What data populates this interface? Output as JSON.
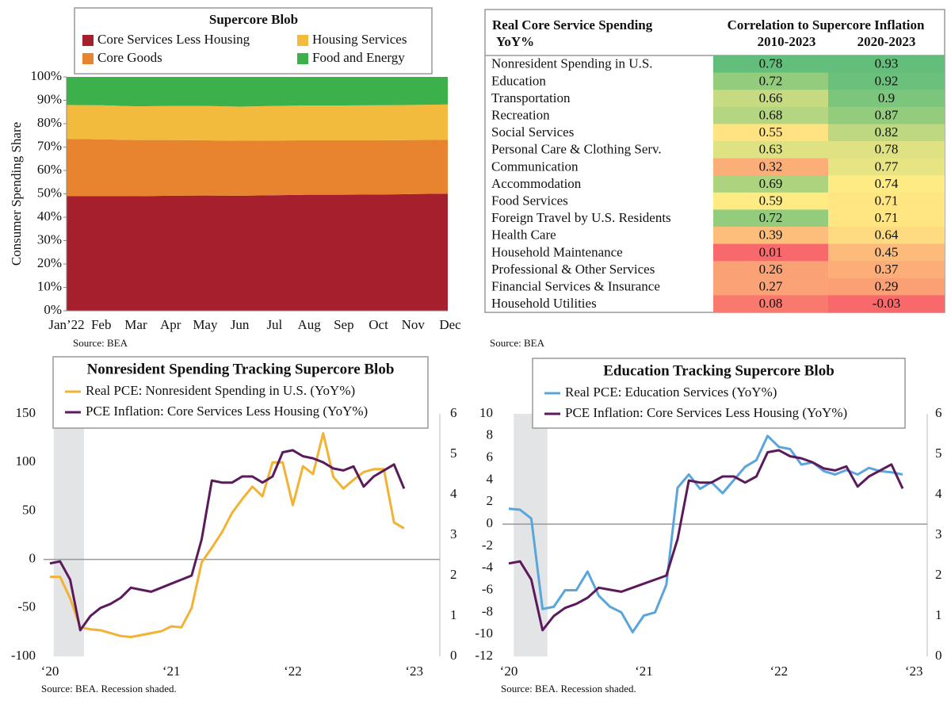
{
  "chart_data": [
    {
      "type": "stacked_area",
      "title": "Supercore Blob",
      "y_label": "Consumer Spending Share",
      "source": "Source: BEA",
      "categories": [
        "Jan’22",
        "Feb",
        "Mar",
        "Apr",
        "May",
        "Jun",
        "Jul",
        "Aug",
        "Sep",
        "Oct",
        "Nov",
        "Dec"
      ],
      "series": [
        {
          "name": "Core Services Less Housing",
          "color": "#a51f2d",
          "values": [
            49,
            49,
            49,
            49.2,
            49.3,
            49.2,
            49.4,
            49.6,
            49.6,
            49.7,
            49.9,
            50.1
          ]
        },
        {
          "name": "Core Goods",
          "color": "#e8832f",
          "values": [
            24.5,
            24.3,
            24,
            23.8,
            23.6,
            23.5,
            23.4,
            23.3,
            23.3,
            23.2,
            23.1,
            23.0
          ]
        },
        {
          "name": "Housing Services",
          "color": "#f2bb3e",
          "values": [
            14.5,
            14.6,
            14.4,
            14.6,
            14.7,
            14.6,
            14.8,
            14.9,
            14.9,
            15.0,
            15.0,
            15.1
          ]
        },
        {
          "name": "Food and Energy",
          "color": "#3cb04b",
          "values": [
            12,
            12.1,
            12.6,
            12.4,
            12.4,
            12.7,
            12.4,
            12.2,
            12.2,
            12.1,
            12.0,
            11.8
          ]
        }
      ],
      "ylim": [
        0,
        100
      ],
      "yticks": [
        {
          "value": 0,
          "label": "0%"
        },
        {
          "value": 10,
          "label": "10%"
        },
        {
          "value": 20,
          "label": "20%"
        },
        {
          "value": 30,
          "label": "30%"
        },
        {
          "value": 40,
          "label": "40%"
        },
        {
          "value": 50,
          "label": "50%"
        },
        {
          "value": 60,
          "label": "60%"
        },
        {
          "value": 70,
          "label": "70%"
        },
        {
          "value": 80,
          "label": "80%"
        },
        {
          "value": 90,
          "label": "90%"
        },
        {
          "value": 100,
          "label": "100%"
        }
      ]
    },
    {
      "type": "heatmap_table",
      "source": "Source: BEA",
      "header": {
        "label": [
          "Real Core Service Spending",
          "YoY%"
        ],
        "group": "Correlation to Supercore Inflation",
        "columns": [
          "2010-2023",
          "2020-2023"
        ]
      },
      "colors": [
        "#f8696b",
        "#ffeb84",
        "#63be7b"
      ],
      "rows": [
        {
          "label": "Nonresident Spending in U.S.",
          "values": [
            0.78,
            0.93
          ]
        },
        {
          "label": "Education",
          "values": [
            0.72,
            0.92
          ]
        },
        {
          "label": "Transportation",
          "values": [
            0.66,
            0.9
          ]
        },
        {
          "label": "Recreation",
          "values": [
            0.68,
            0.87
          ]
        },
        {
          "label": "Social Services",
          "values": [
            0.55,
            0.82
          ]
        },
        {
          "label": "Personal Care & Clothing Serv.",
          "values": [
            0.63,
            0.78
          ]
        },
        {
          "label": "Communication",
          "values": [
            0.32,
            0.77
          ]
        },
        {
          "label": "Accommodation",
          "values": [
            0.69,
            0.74
          ]
        },
        {
          "label": "Food Services",
          "values": [
            0.59,
            0.71
          ]
        },
        {
          "label": "Foreign Travel by U.S. Residents",
          "values": [
            0.72,
            0.71
          ]
        },
        {
          "label": "Health Care",
          "values": [
            0.39,
            0.64
          ]
        },
        {
          "label": "Household Maintenance",
          "values": [
            0.01,
            0.45
          ]
        },
        {
          "label": "Professional & Other Services",
          "values": [
            0.26,
            0.37
          ]
        },
        {
          "label": "Financial Services & Insurance",
          "values": [
            0.27,
            0.29
          ]
        },
        {
          "label": "Household Utilities",
          "values": [
            0.08,
            -0.03
          ]
        }
      ]
    },
    {
      "type": "line",
      "title": "Nonresident Spending Tracking Supercore Blob",
      "source": "Source: BEA. Recession shaded.",
      "categories": [
        "‘20",
        null,
        null,
        null,
        null,
        null,
        null,
        null,
        null,
        null,
        null,
        null,
        "‘21",
        null,
        null,
        null,
        null,
        null,
        null,
        null,
        null,
        null,
        null,
        null,
        "‘22",
        null,
        null,
        null,
        null,
        null,
        null,
        null,
        null,
        null,
        null,
        null,
        "‘23"
      ],
      "shade": {
        "from": 1,
        "to": 4
      },
      "zero_line": true,
      "series": [
        {
          "name": "Real PCE: Nonresident Spending in U.S. (YoY%)",
          "color": "#f2b233",
          "axis": "y",
          "values": [
            -18,
            -18,
            -40,
            -70,
            -72,
            -73,
            -76,
            -79,
            -80,
            -78,
            -76,
            -74,
            -69,
            -70,
            -50,
            -3,
            12,
            28,
            48,
            62,
            75,
            65,
            100,
            100,
            56,
            96,
            88,
            130,
            85,
            73,
            82,
            90,
            93,
            93,
            38,
            32,
            null
          ]
        },
        {
          "name": "PCE Inflation: Core Services Less Housing (YoY%)",
          "color": "#5b1a5b",
          "axis": "y2",
          "values": [
            2.3,
            2.35,
            1.9,
            0.65,
            1.0,
            1.2,
            1.3,
            1.45,
            1.7,
            1.65,
            1.6,
            1.7,
            1.8,
            1.9,
            2.0,
            2.9,
            4.35,
            4.3,
            4.3,
            4.45,
            4.45,
            4.3,
            4.45,
            5.05,
            5.1,
            4.95,
            4.9,
            4.8,
            4.65,
            4.6,
            4.7,
            4.2,
            4.45,
            4.6,
            4.75,
            4.15,
            null
          ]
        }
      ],
      "ylim": [
        -100,
        150
      ],
      "yticks": [
        -100,
        -50,
        0,
        50,
        100,
        150
      ],
      "y2lim": [
        0,
        6
      ],
      "y2ticks": [
        0,
        1,
        2,
        3,
        4,
        5,
        6
      ]
    },
    {
      "type": "line",
      "title": "Education Tracking Supercore Blob",
      "source": "Source: BEA. Recession shaded.",
      "categories": [
        "‘20",
        null,
        null,
        null,
        null,
        null,
        null,
        null,
        null,
        null,
        null,
        null,
        "‘21",
        null,
        null,
        null,
        null,
        null,
        null,
        null,
        null,
        null,
        null,
        null,
        "‘22",
        null,
        null,
        null,
        null,
        null,
        null,
        null,
        null,
        null,
        null,
        null,
        "‘23"
      ],
      "shade": {
        "from": 1,
        "to": 4
      },
      "zero_line": true,
      "series": [
        {
          "name": "Real PCE: Education Services (YoY%)",
          "color": "#5aa5dc",
          "axis": "y",
          "values": [
            1.4,
            1.3,
            0.5,
            -7.7,
            -7.5,
            -6,
            -6,
            -4.3,
            -6.5,
            -7.5,
            -8,
            -9.8,
            -8.3,
            -8,
            -5.5,
            3.3,
            4.5,
            3.2,
            3.8,
            2.8,
            4,
            5.2,
            5.8,
            8,
            7,
            6.8,
            5.4,
            5.6,
            4.8,
            4.5,
            4.9,
            4.5,
            5.1,
            4.8,
            4.7,
            4.5,
            null
          ]
        },
        {
          "name": "PCE Inflation: Core Services Less Housing (YoY%)",
          "color": "#5b1a5b",
          "axis": "y2",
          "values": [
            2.3,
            2.35,
            1.9,
            0.65,
            1.0,
            1.2,
            1.3,
            1.45,
            1.7,
            1.65,
            1.6,
            1.7,
            1.8,
            1.9,
            2.0,
            2.9,
            4.35,
            4.3,
            4.3,
            4.45,
            4.45,
            4.3,
            4.45,
            5.05,
            5.1,
            4.95,
            4.9,
            4.8,
            4.65,
            4.6,
            4.7,
            4.2,
            4.45,
            4.6,
            4.75,
            4.15,
            null
          ]
        }
      ],
      "ylim": [
        -12,
        10
      ],
      "yticks": [
        -12,
        -10,
        -8,
        -6,
        -4,
        -2,
        0,
        2,
        4,
        6,
        8,
        10
      ],
      "y2lim": [
        0,
        6
      ],
      "y2ticks": [
        0,
        1,
        2,
        3,
        4,
        5,
        6
      ]
    }
  ]
}
